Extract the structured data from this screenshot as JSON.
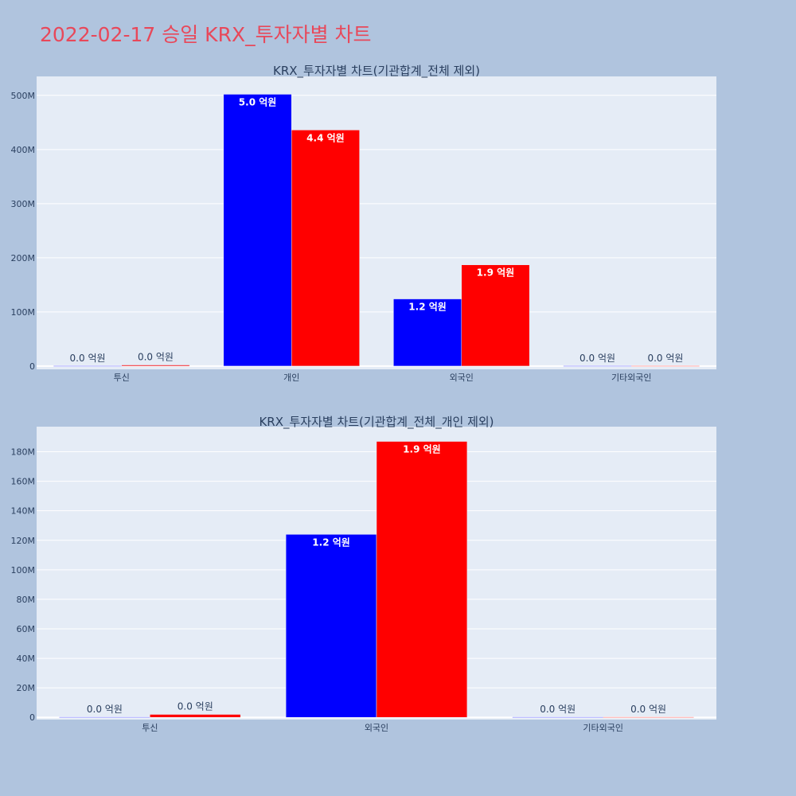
{
  "page": {
    "title": "2022-02-17 승일 KRX_투자자별 차트"
  },
  "chart_data": [
    {
      "type": "bar",
      "title": "KRX_투자자별 차트(기관합계_전체 제외)",
      "categories": [
        "투신",
        "개인",
        "외국인",
        "기타외국인"
      ],
      "series": [
        {
          "color": "#0000ff",
          "values": [
            0,
            502000000,
            124000000,
            0
          ],
          "labels": [
            "0.0 억원",
            "5.0 억원",
            "1.2 억원",
            "0.0 억원"
          ]
        },
        {
          "color": "#ff0000",
          "values": [
            2000000,
            436000000,
            187000000,
            0
          ],
          "labels": [
            "0.0 억원",
            "4.4 억원",
            "1.9 억원",
            "0.0 억원"
          ]
        }
      ],
      "ylim": [
        -6000000,
        535000000
      ],
      "yticks": [
        0,
        100000000,
        200000000,
        300000000,
        400000000,
        500000000
      ],
      "ytick_labels": [
        "0",
        "100M",
        "200M",
        "300M",
        "400M",
        "500M"
      ],
      "grid": true
    },
    {
      "type": "bar",
      "title": "KRX_투자자별 차트(기관합계_전체_개인 제외)",
      "categories": [
        "투신",
        "외국인",
        "기타외국인"
      ],
      "series": [
        {
          "color": "#0000ff",
          "values": [
            0,
            124000000,
            0
          ],
          "labels": [
            "0.0 억원",
            "1.2 억원",
            "0.0 억원"
          ]
        },
        {
          "color": "#ff0000",
          "values": [
            2000000,
            187000000,
            0
          ],
          "labels": [
            "0.0 억원",
            "1.9 억원",
            "0.0 억원"
          ]
        }
      ],
      "ylim": [
        -1500000,
        197000000
      ],
      "yticks": [
        0,
        20000000,
        40000000,
        60000000,
        80000000,
        100000000,
        120000000,
        140000000,
        160000000,
        180000000
      ],
      "ytick_labels": [
        "0",
        "20M",
        "40M",
        "60M",
        "80M",
        "100M",
        "120M",
        "140M",
        "160M",
        "180M"
      ],
      "grid": true
    }
  ]
}
